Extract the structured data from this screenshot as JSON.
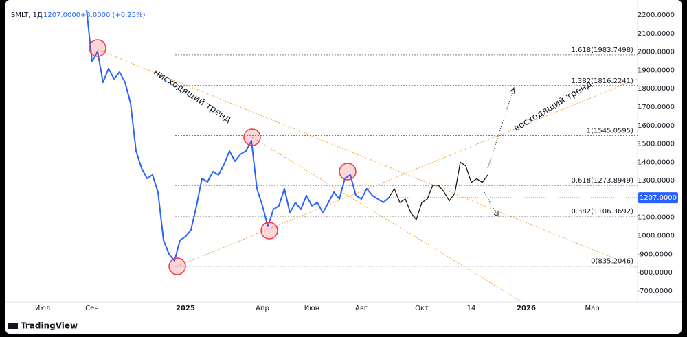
{
  "header": {
    "symbol": "SMLT, 1Д",
    "price": "1207.0000",
    "change": "+3.0000 (+0.25%)"
  },
  "branding": "TradingView",
  "chart_data": {
    "type": "line",
    "categories": [
      "Июл",
      null,
      null,
      null,
      null,
      null,
      null,
      null,
      null,
      "Сен",
      null,
      null,
      null,
      null,
      null,
      null,
      null,
      null,
      null,
      null,
      null,
      null,
      null,
      null,
      null,
      null,
      "2025",
      null,
      null,
      null,
      null,
      null,
      null,
      null,
      null,
      null,
      null,
      null,
      null,
      null,
      "Апр",
      null,
      null,
      null,
      null,
      null,
      null,
      null,
      null,
      "Июн",
      null,
      null,
      null,
      null,
      null,
      null,
      null,
      null,
      "Авг",
      null,
      null,
      null,
      null,
      null,
      null,
      null,
      null,
      null,
      null,
      "Окт",
      null,
      null,
      null,
      null,
      null,
      null,
      null,
      null,
      "14",
      null,
      null,
      null,
      null,
      null,
      null,
      null,
      null,
      null,
      "2026",
      null,
      null,
      null,
      null,
      null,
      null,
      null,
      null,
      null,
      null,
      null,
      "Мар",
      null
    ],
    "series": [
      {
        "color": "#2962ff",
        "values": [
          null,
          null,
          null,
          null,
          null,
          null,
          null,
          null,
          2230,
          1946,
          2002,
          1834,
          1909,
          1853,
          1890,
          1834,
          1722,
          1461,
          1368,
          1312,
          1331,
          1237,
          976,
          901,
          864,
          976,
          995,
          1032,
          1163,
          1312,
          1293,
          1349,
          1331,
          1387,
          1461,
          1405,
          1443,
          1461,
          1517,
          1256,
          1163,
          1051,
          1144,
          1163,
          1256,
          1125,
          1181,
          1144,
          1219,
          1163,
          1181,
          1125,
          1181,
          1237,
          1200,
          1312,
          1331,
          1219,
          1200,
          1256,
          1219,
          1200,
          1181,
          1207,
          null,
          null,
          null,
          null,
          null,
          null,
          null,
          null,
          null,
          null,
          null,
          null,
          null,
          null,
          null,
          null,
          null,
          null,
          null,
          null,
          null,
          null,
          null,
          null,
          null,
          null,
          null,
          null,
          null,
          null,
          null,
          null,
          null,
          null,
          null,
          null,
          null,
          null
        ]
      },
      {
        "color": "#131722",
        "values": [
          null,
          null,
          null,
          null,
          null,
          null,
          null,
          null,
          null,
          null,
          null,
          null,
          null,
          null,
          null,
          null,
          null,
          null,
          null,
          null,
          null,
          null,
          null,
          null,
          null,
          null,
          null,
          null,
          null,
          null,
          null,
          null,
          null,
          null,
          null,
          null,
          null,
          null,
          null,
          null,
          null,
          null,
          null,
          null,
          null,
          null,
          null,
          null,
          null,
          null,
          null,
          null,
          null,
          null,
          null,
          null,
          null,
          null,
          null,
          null,
          null,
          null,
          null,
          1207,
          1256,
          1181,
          1200,
          1125,
          1088,
          1181,
          1200,
          1275,
          1275,
          1240,
          1190,
          1230,
          1400,
          1380,
          1290,
          1310,
          1290,
          1331,
          null,
          null,
          null,
          null,
          null,
          null,
          null,
          null,
          null,
          null,
          null,
          null,
          null,
          null,
          null,
          null,
          null,
          null,
          null,
          null
        ]
      }
    ],
    "ylim": [
      640,
      2282
    ],
    "yticks": [
      {
        "value": 700,
        "label": "700.0000"
      },
      {
        "value": 800,
        "label": "800.0000"
      },
      {
        "value": 900,
        "label": "900.0000"
      },
      {
        "value": 1000,
        "label": "1000.0000"
      },
      {
        "value": 1100,
        "label": "1100.0000"
      },
      {
        "value": 1200,
        "label": "1200.0000"
      },
      {
        "value": 1300,
        "label": "1300.0000"
      },
      {
        "value": 1400,
        "label": "1400.0000"
      },
      {
        "value": 1500,
        "label": "1500.0000"
      },
      {
        "value": 1600,
        "label": "1600.0000"
      },
      {
        "value": 1700,
        "label": "1700.0000"
      },
      {
        "value": 1800,
        "label": "1800.0000"
      },
      {
        "value": 1900,
        "label": "1900.0000"
      },
      {
        "value": 2000,
        "label": "2000.0000"
      },
      {
        "value": 2100,
        "label": "2100.0000"
      },
      {
        "value": 2200,
        "label": "2200.0000"
      }
    ],
    "fib_levels": [
      {
        "value": 1983.7498,
        "label": "1.618(1983.7498)"
      },
      {
        "value": 1816.2241,
        "label": "1.382(1816.2241)"
      },
      {
        "value": 1545.0595,
        "label": "1(1545.0595)"
      },
      {
        "value": 1273.8949,
        "label": "0.618(1273.8949)"
      },
      {
        "value": 1106.3692,
        "label": "0.382(1106.3692)"
      },
      {
        "value": 835.2046,
        "label": "0(835.2046)"
      }
    ],
    "annotations": [
      "нисходящий тренд",
      "восходящий тренд"
    ]
  }
}
